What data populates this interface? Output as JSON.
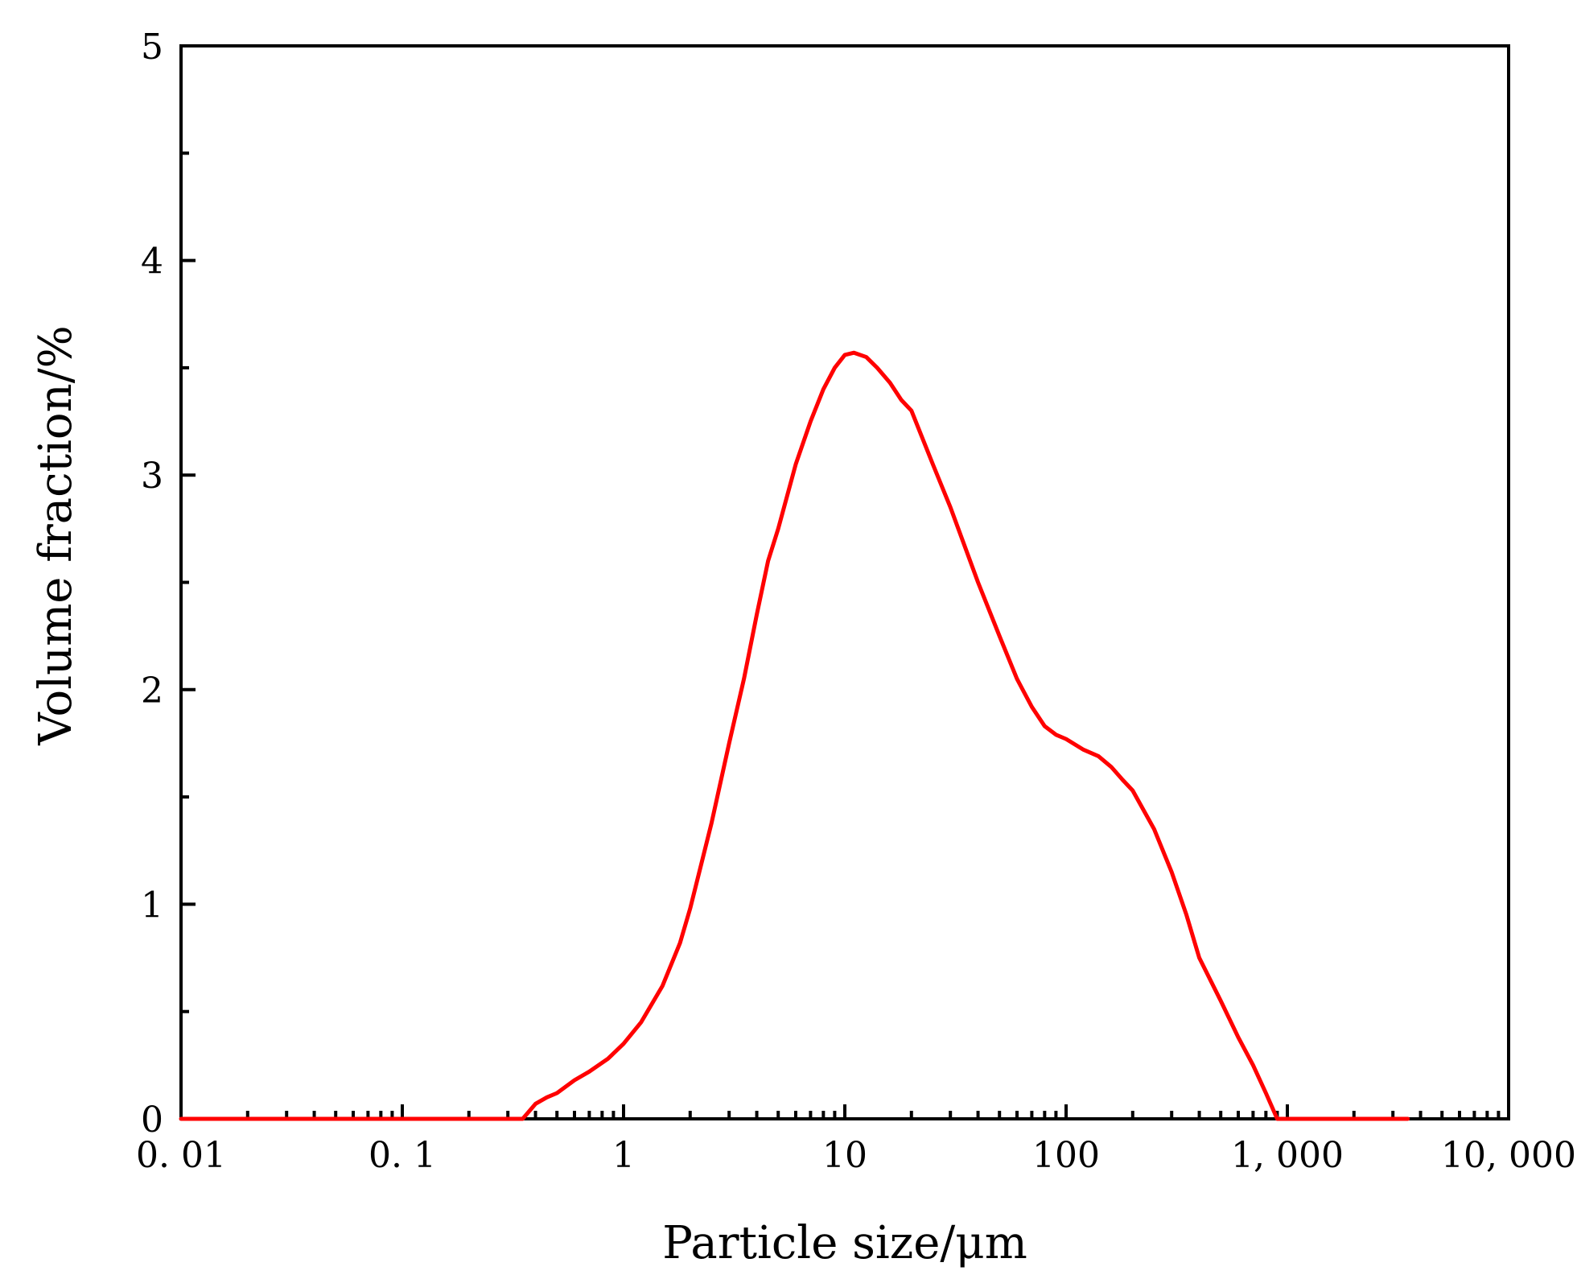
{
  "chart_data": {
    "type": "line",
    "title": "",
    "xlabel": "Particle size/μm",
    "ylabel": "Volume fraction/%",
    "x_scale": "log",
    "xlim": [
      0.01,
      10000
    ],
    "ylim": [
      0,
      5
    ],
    "x_tick_values": [
      0.01,
      0.1,
      1,
      10,
      100,
      1000,
      10000
    ],
    "x_tick_labels": [
      "0. 01",
      "0. 1",
      "1",
      "10",
      "100",
      "1, 000",
      "10, 000"
    ],
    "y_tick_values": [
      0,
      1,
      2,
      3,
      4,
      5
    ],
    "y_tick_labels": [
      "0",
      "1",
      "2",
      "3",
      "4",
      "5"
    ],
    "grid": false,
    "legend": "none",
    "series": [
      {
        "color": "#ff0000",
        "x": [
          0.01,
          0.02,
          0.05,
          0.1,
          0.2,
          0.35,
          0.4,
          0.45,
          0.5,
          0.6,
          0.7,
          0.85,
          1.0,
          1.2,
          1.5,
          1.8,
          2.0,
          2.5,
          3.0,
          3.5,
          4.0,
          4.5,
          5.0,
          6.0,
          7.0,
          8.0,
          9.0,
          10.0,
          11.0,
          12.5,
          14.0,
          16.0,
          18.0,
          20.0,
          25.0,
          30.0,
          40.0,
          50.0,
          60.0,
          70.0,
          80.0,
          90.0,
          100.0,
          120.0,
          140.0,
          160.0,
          180.0,
          200.0,
          250.0,
          300.0,
          350.0,
          400.0,
          500.0,
          600.0,
          700.0,
          800.0,
          900.0,
          1000.0,
          2000.0,
          3500.0
        ],
        "y": [
          0,
          0,
          0,
          0,
          0,
          0,
          0.07,
          0.1,
          0.12,
          0.18,
          0.22,
          0.28,
          0.35,
          0.45,
          0.62,
          0.82,
          0.98,
          1.38,
          1.75,
          2.05,
          2.35,
          2.6,
          2.75,
          3.05,
          3.25,
          3.4,
          3.5,
          3.56,
          3.57,
          3.55,
          3.5,
          3.43,
          3.35,
          3.3,
          3.05,
          2.85,
          2.5,
          2.25,
          2.05,
          1.92,
          1.83,
          1.79,
          1.77,
          1.72,
          1.69,
          1.64,
          1.58,
          1.53,
          1.35,
          1.15,
          0.95,
          0.75,
          0.55,
          0.38,
          0.25,
          0.12,
          0,
          0,
          0,
          0
        ]
      }
    ]
  }
}
